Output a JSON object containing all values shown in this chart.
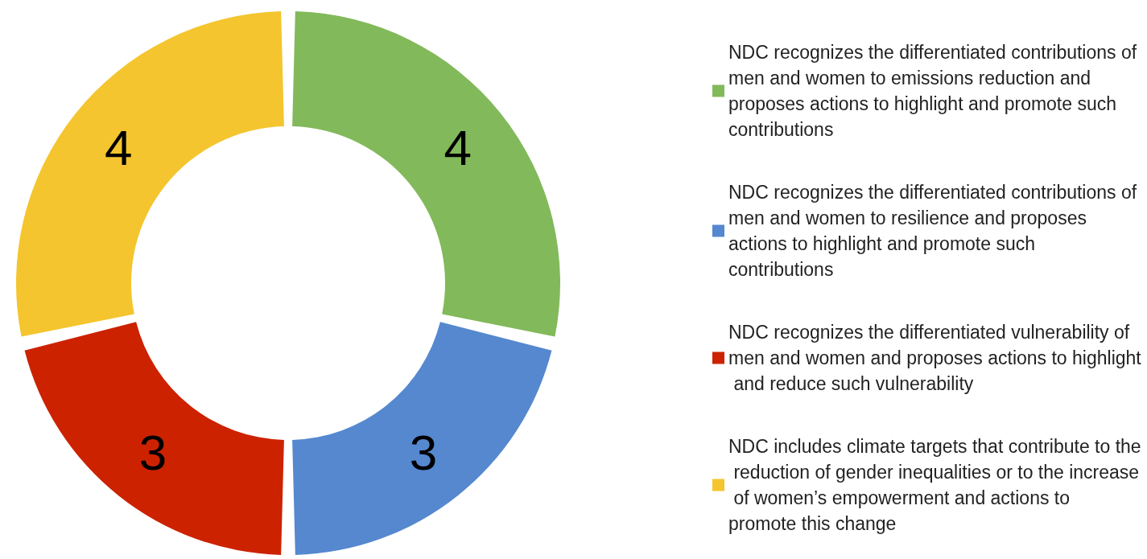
{
  "chart_data": {
    "type": "donut",
    "categories": [
      "NDC recognizes the differentiated contributions of men and women to emissions reduction and proposes actions to highlight and promote such contributions",
      "NDC recognizes the differentiated contributions of men and women to resilience and proposes actions to highlight and promote such contributions",
      "NDC recognizes the differentiated vulnerability of men and women and proposes actions to highlight and reduce such vulnerability",
      "NDC includes climate targets that contribute to the reduction of gender inequalities or to the increase of women’s empowerment and actions to promote this change"
    ],
    "values": [
      4,
      3,
      3,
      4
    ],
    "colors": [
      "#82b95b",
      "#5588cf",
      "#cc2200",
      "#f4c52e"
    ],
    "data_labels": true,
    "legend": "right"
  }
}
